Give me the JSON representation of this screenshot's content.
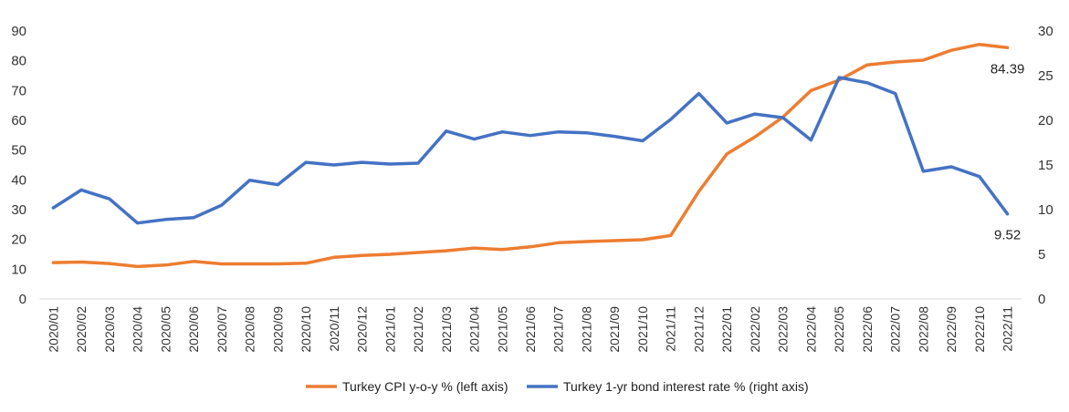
{
  "chart_data": {
    "type": "line",
    "categories": [
      "2020/01",
      "2020/02",
      "2020/03",
      "2020/04",
      "2020/05",
      "2020/06",
      "2020/07",
      "2020/08",
      "2020/09",
      "2020/10",
      "2020/11",
      "2020/12",
      "2021/01",
      "2021/02",
      "2021/03",
      "2021/04",
      "2021/05",
      "2021/06",
      "2021/07",
      "2021/08",
      "2021/09",
      "2021/10",
      "2021/11",
      "2021/12",
      "2022/01",
      "2022/02",
      "2022/03",
      "2022/04",
      "2022/05",
      "2022/06",
      "2022/07",
      "2022/08",
      "2022/09",
      "2022/10",
      "2022/11"
    ],
    "series": [
      {
        "name": "Turkey CPI y-o-y % (left axis)",
        "axis": "left",
        "color": "#ED7D31",
        "values": [
          12.2,
          12.4,
          11.9,
          10.9,
          11.4,
          12.6,
          11.8,
          11.8,
          11.8,
          12.0,
          14.0,
          14.6,
          15.0,
          15.6,
          16.2,
          17.1,
          16.6,
          17.5,
          18.9,
          19.3,
          19.6,
          19.9,
          21.3,
          36.1,
          48.7,
          54.4,
          61.1,
          70.0,
          73.5,
          78.6,
          79.6,
          80.2,
          83.5,
          85.5,
          84.39
        ]
      },
      {
        "name": "Turkey 1-yr bond interest rate % (right axis)",
        "axis": "right",
        "color": "#4472C4",
        "values": [
          10.2,
          12.2,
          11.2,
          8.5,
          8.9,
          9.1,
          10.5,
          13.3,
          12.8,
          15.3,
          15.0,
          15.3,
          15.1,
          15.2,
          18.8,
          17.9,
          18.7,
          18.3,
          18.7,
          18.6,
          18.2,
          17.7,
          20.1,
          23.0,
          19.7,
          20.7,
          20.3,
          17.8,
          24.8,
          24.2,
          23.0,
          14.3,
          14.8,
          13.7,
          9.52
        ]
      }
    ],
    "y_left": {
      "min": 0,
      "max": 90,
      "step": 10,
      "ticks": [
        "0",
        "10",
        "20",
        "30",
        "40",
        "50",
        "60",
        "70",
        "80",
        "90"
      ]
    },
    "y_right": {
      "min": 0,
      "max": 30,
      "step": 5,
      "ticks": [
        "0",
        "5",
        "10",
        "15",
        "20",
        "25",
        "30"
      ]
    },
    "annotations": [
      {
        "series": 0,
        "index": 34,
        "text": "84.39"
      },
      {
        "series": 1,
        "index": 34,
        "text": "9.52"
      }
    ],
    "grid": false,
    "legend_position": "bottom"
  }
}
